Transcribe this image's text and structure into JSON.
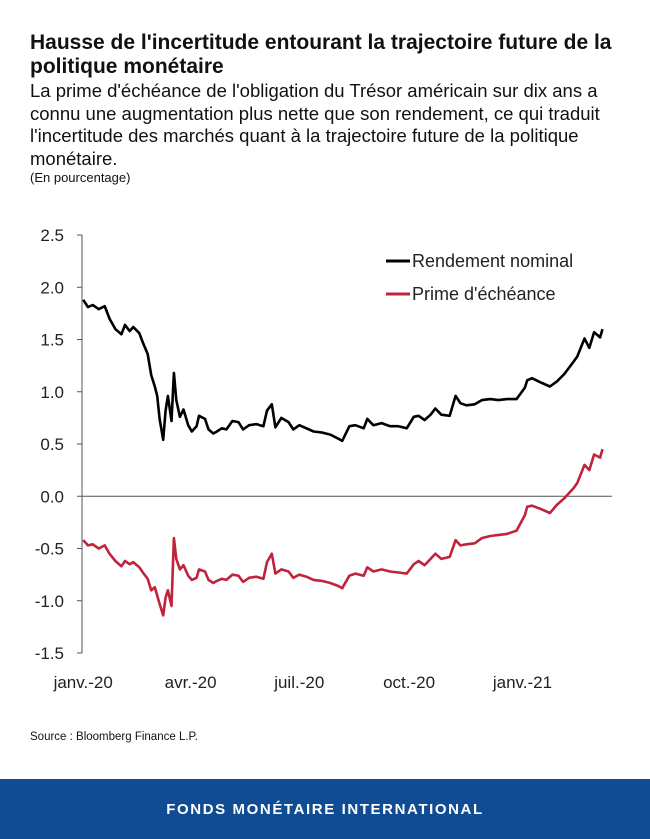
{
  "header": {
    "title": "Hausse de l'incertitude entourant la trajectoire future de la politique monétaire",
    "subtitle": "La prime d'échéance de l'obligation du Trésor américain sur dix ans a connu une augmentation plus nette que son rendement, ce qui traduit l'incertitude des marchés quant à la trajectoire future de la politique monétaire.",
    "unit": "(En pourcentage)"
  },
  "source": "Source : Bloomberg Finance L.P.",
  "footer": {
    "label": "FONDS MONÉTAIRE INTERNATIONAL",
    "color": "#0f4c94"
  },
  "chart_data": {
    "type": "line",
    "x_type": "date",
    "ylim": [
      -1.5,
      2.5
    ],
    "yticks": [
      "2.5",
      "2.0",
      "1.5",
      "1.0",
      "0.5",
      "0.0",
      "-0.5",
      "-1.0",
      "-1.5"
    ],
    "xticks": [
      {
        "date": "2020-01-02",
        "label": "janv.-20"
      },
      {
        "date": "2020-04-01",
        "label": "avr.-20"
      },
      {
        "date": "2020-07-01",
        "label": "juil.-20"
      },
      {
        "date": "2020-10-01",
        "label": "oct.-20"
      },
      {
        "date": "2021-01-04",
        "label": "janv.-21"
      }
    ],
    "grid": false,
    "legend_position": "top-right",
    "series": [
      {
        "name": "Rendement nominal",
        "color": "#000000",
        "points": [
          [
            "2020-01-02",
            1.88
          ],
          [
            "2020-01-06",
            1.81
          ],
          [
            "2020-01-10",
            1.83
          ],
          [
            "2020-01-15",
            1.79
          ],
          [
            "2020-01-20",
            1.82
          ],
          [
            "2020-01-24",
            1.7
          ],
          [
            "2020-01-29",
            1.6
          ],
          [
            "2020-02-03",
            1.55
          ],
          [
            "2020-02-06",
            1.64
          ],
          [
            "2020-02-10",
            1.58
          ],
          [
            "2020-02-13",
            1.62
          ],
          [
            "2020-02-18",
            1.56
          ],
          [
            "2020-02-21",
            1.47
          ],
          [
            "2020-02-25",
            1.36
          ],
          [
            "2020-02-28",
            1.16
          ],
          [
            "2020-03-02",
            1.05
          ],
          [
            "2020-03-04",
            0.96
          ],
          [
            "2020-03-06",
            0.74
          ],
          [
            "2020-03-09",
            0.54
          ],
          [
            "2020-03-11",
            0.82
          ],
          [
            "2020-03-13",
            0.96
          ],
          [
            "2020-03-16",
            0.72
          ],
          [
            "2020-03-18",
            1.18
          ],
          [
            "2020-03-20",
            0.92
          ],
          [
            "2020-03-23",
            0.76
          ],
          [
            "2020-03-26",
            0.83
          ],
          [
            "2020-03-30",
            0.68
          ],
          [
            "2020-04-02",
            0.62
          ],
          [
            "2020-04-06",
            0.67
          ],
          [
            "2020-04-08",
            0.77
          ],
          [
            "2020-04-13",
            0.74
          ],
          [
            "2020-04-16",
            0.64
          ],
          [
            "2020-04-20",
            0.6
          ],
          [
            "2020-04-23",
            0.62
          ],
          [
            "2020-04-27",
            0.65
          ],
          [
            "2020-05-01",
            0.64
          ],
          [
            "2020-05-06",
            0.72
          ],
          [
            "2020-05-11",
            0.71
          ],
          [
            "2020-05-15",
            0.64
          ],
          [
            "2020-05-20",
            0.68
          ],
          [
            "2020-05-26",
            0.69
          ],
          [
            "2020-06-01",
            0.67
          ],
          [
            "2020-06-04",
            0.82
          ],
          [
            "2020-06-08",
            0.88
          ],
          [
            "2020-06-11",
            0.66
          ],
          [
            "2020-06-16",
            0.75
          ],
          [
            "2020-06-22",
            0.71
          ],
          [
            "2020-06-26",
            0.64
          ],
          [
            "2020-07-01",
            0.68
          ],
          [
            "2020-07-07",
            0.65
          ],
          [
            "2020-07-13",
            0.62
          ],
          [
            "2020-07-20",
            0.61
          ],
          [
            "2020-07-27",
            0.59
          ],
          [
            "2020-08-03",
            0.55
          ],
          [
            "2020-08-06",
            0.53
          ],
          [
            "2020-08-12",
            0.67
          ],
          [
            "2020-08-17",
            0.68
          ],
          [
            "2020-08-24",
            0.65
          ],
          [
            "2020-08-27",
            0.74
          ],
          [
            "2020-09-01",
            0.68
          ],
          [
            "2020-09-08",
            0.7
          ],
          [
            "2020-09-15",
            0.67
          ],
          [
            "2020-09-22",
            0.67
          ],
          [
            "2020-09-29",
            0.65
          ],
          [
            "2020-10-05",
            0.76
          ],
          [
            "2020-10-09",
            0.77
          ],
          [
            "2020-10-14",
            0.73
          ],
          [
            "2020-10-19",
            0.78
          ],
          [
            "2020-10-23",
            0.84
          ],
          [
            "2020-10-28",
            0.78
          ],
          [
            "2020-11-04",
            0.77
          ],
          [
            "2020-11-09",
            0.96
          ],
          [
            "2020-11-13",
            0.89
          ],
          [
            "2020-11-18",
            0.87
          ],
          [
            "2020-11-25",
            0.88
          ],
          [
            "2020-12-01",
            0.92
          ],
          [
            "2020-12-08",
            0.93
          ],
          [
            "2020-12-15",
            0.92
          ],
          [
            "2020-12-22",
            0.93
          ],
          [
            "2020-12-30",
            0.93
          ],
          [
            "2021-01-06",
            1.04
          ],
          [
            "2021-01-08",
            1.11
          ],
          [
            "2021-01-12",
            1.13
          ],
          [
            "2021-01-19",
            1.09
          ],
          [
            "2021-01-27",
            1.05
          ],
          [
            "2021-02-02",
            1.1
          ],
          [
            "2021-02-08",
            1.17
          ],
          [
            "2021-02-16",
            1.29
          ],
          [
            "2021-02-19",
            1.34
          ],
          [
            "2021-02-25",
            1.51
          ],
          [
            "2021-03-01",
            1.42
          ],
          [
            "2021-03-05",
            1.57
          ],
          [
            "2021-03-10",
            1.52
          ],
          [
            "2021-03-12",
            1.6
          ]
        ]
      },
      {
        "name": "Prime d'échéance",
        "color": "#c0243c",
        "points": [
          [
            "2020-01-02",
            -0.42
          ],
          [
            "2020-01-06",
            -0.47
          ],
          [
            "2020-01-10",
            -0.46
          ],
          [
            "2020-01-15",
            -0.5
          ],
          [
            "2020-01-20",
            -0.47
          ],
          [
            "2020-01-24",
            -0.55
          ],
          [
            "2020-01-29",
            -0.62
          ],
          [
            "2020-02-03",
            -0.67
          ],
          [
            "2020-02-06",
            -0.62
          ],
          [
            "2020-02-10",
            -0.65
          ],
          [
            "2020-02-13",
            -0.63
          ],
          [
            "2020-02-18",
            -0.68
          ],
          [
            "2020-02-21",
            -0.73
          ],
          [
            "2020-02-25",
            -0.79
          ],
          [
            "2020-02-28",
            -0.9
          ],
          [
            "2020-03-02",
            -0.87
          ],
          [
            "2020-03-04",
            -0.95
          ],
          [
            "2020-03-06",
            -1.03
          ],
          [
            "2020-03-09",
            -1.14
          ],
          [
            "2020-03-11",
            -0.97
          ],
          [
            "2020-03-13",
            -0.9
          ],
          [
            "2020-03-16",
            -1.05
          ],
          [
            "2020-03-18",
            -0.4
          ],
          [
            "2020-03-20",
            -0.6
          ],
          [
            "2020-03-23",
            -0.7
          ],
          [
            "2020-03-26",
            -0.66
          ],
          [
            "2020-03-30",
            -0.76
          ],
          [
            "2020-04-02",
            -0.8
          ],
          [
            "2020-04-06",
            -0.78
          ],
          [
            "2020-04-08",
            -0.7
          ],
          [
            "2020-04-13",
            -0.72
          ],
          [
            "2020-04-16",
            -0.8
          ],
          [
            "2020-04-20",
            -0.83
          ],
          [
            "2020-04-23",
            -0.81
          ],
          [
            "2020-04-27",
            -0.79
          ],
          [
            "2020-05-01",
            -0.8
          ],
          [
            "2020-05-06",
            -0.75
          ],
          [
            "2020-05-11",
            -0.76
          ],
          [
            "2020-05-15",
            -0.82
          ],
          [
            "2020-05-20",
            -0.78
          ],
          [
            "2020-05-26",
            -0.77
          ],
          [
            "2020-06-01",
            -0.79
          ],
          [
            "2020-06-04",
            -0.63
          ],
          [
            "2020-06-08",
            -0.55
          ],
          [
            "2020-06-11",
            -0.74
          ],
          [
            "2020-06-16",
            -0.7
          ],
          [
            "2020-06-22",
            -0.72
          ],
          [
            "2020-06-26",
            -0.78
          ],
          [
            "2020-07-01",
            -0.75
          ],
          [
            "2020-07-07",
            -0.77
          ],
          [
            "2020-07-13",
            -0.8
          ],
          [
            "2020-07-20",
            -0.81
          ],
          [
            "2020-07-27",
            -0.83
          ],
          [
            "2020-08-03",
            -0.86
          ],
          [
            "2020-08-06",
            -0.88
          ],
          [
            "2020-08-12",
            -0.76
          ],
          [
            "2020-08-17",
            -0.74
          ],
          [
            "2020-08-24",
            -0.76
          ],
          [
            "2020-08-27",
            -0.68
          ],
          [
            "2020-09-01",
            -0.72
          ],
          [
            "2020-09-08",
            -0.7
          ],
          [
            "2020-09-15",
            -0.72
          ],
          [
            "2020-09-22",
            -0.73
          ],
          [
            "2020-09-29",
            -0.74
          ],
          [
            "2020-10-05",
            -0.65
          ],
          [
            "2020-10-09",
            -0.62
          ],
          [
            "2020-10-14",
            -0.66
          ],
          [
            "2020-10-19",
            -0.6
          ],
          [
            "2020-10-23",
            -0.55
          ],
          [
            "2020-10-28",
            -0.6
          ],
          [
            "2020-11-04",
            -0.58
          ],
          [
            "2020-11-09",
            -0.42
          ],
          [
            "2020-11-13",
            -0.47
          ],
          [
            "2020-11-18",
            -0.46
          ],
          [
            "2020-11-25",
            -0.45
          ],
          [
            "2020-12-01",
            -0.4
          ],
          [
            "2020-12-08",
            -0.38
          ],
          [
            "2020-12-15",
            -0.37
          ],
          [
            "2020-12-22",
            -0.36
          ],
          [
            "2020-12-30",
            -0.33
          ],
          [
            "2021-01-06",
            -0.18
          ],
          [
            "2021-01-08",
            -0.1
          ],
          [
            "2021-01-12",
            -0.09
          ],
          [
            "2021-01-19",
            -0.12
          ],
          [
            "2021-01-27",
            -0.16
          ],
          [
            "2021-02-02",
            -0.08
          ],
          [
            "2021-02-08",
            -0.02
          ],
          [
            "2021-02-16",
            0.08
          ],
          [
            "2021-02-19",
            0.13
          ],
          [
            "2021-02-25",
            0.3
          ],
          [
            "2021-03-01",
            0.25
          ],
          [
            "2021-03-05",
            0.4
          ],
          [
            "2021-03-10",
            0.37
          ],
          [
            "2021-03-12",
            0.45
          ]
        ]
      }
    ]
  }
}
